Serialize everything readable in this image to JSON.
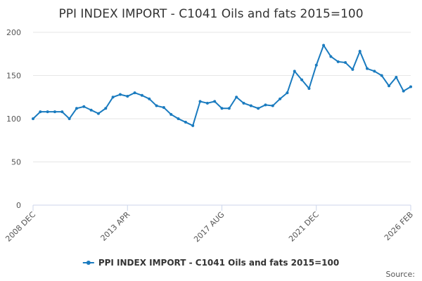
{
  "chart_data": {
    "type": "line",
    "title": "PPI INDEX IMPORT - C1041 Oils and fats 2015=100",
    "source": "Source:",
    "categories": [
      "2008 DEC",
      null,
      null,
      null,
      null,
      null,
      null,
      null,
      null,
      null,
      null,
      null,
      null,
      "2013 APR",
      null,
      null,
      null,
      null,
      null,
      null,
      null,
      null,
      null,
      null,
      null,
      null,
      "2017 AUG",
      null,
      null,
      null,
      null,
      null,
      null,
      null,
      null,
      null,
      null,
      null,
      null,
      "2021 DEC",
      null,
      null,
      null,
      null,
      null,
      null,
      null,
      null,
      null,
      null,
      null,
      null,
      "2026 FEB"
    ],
    "series": [
      {
        "name": "PPI INDEX IMPORT - C1041 Oils and fats 2015=100",
        "color": "#1a7bbf",
        "values": [
          100,
          108,
          108,
          108,
          108,
          100,
          112,
          114,
          110,
          106,
          112,
          125,
          128,
          126,
          130,
          127,
          123,
          115,
          113,
          105,
          100,
          96,
          92,
          120,
          118,
          120,
          112,
          112,
          125,
          118,
          115,
          112,
          116,
          115,
          123,
          130,
          155,
          145,
          135,
          162,
          185,
          172,
          166,
          165,
          157,
          178,
          158,
          155,
          150,
          138,
          148,
          132,
          137
        ]
      }
    ],
    "ylim": [
      0,
      200
    ],
    "yticks": [
      0,
      50,
      100,
      150,
      200
    ],
    "grid": true,
    "legend": "bottom"
  }
}
